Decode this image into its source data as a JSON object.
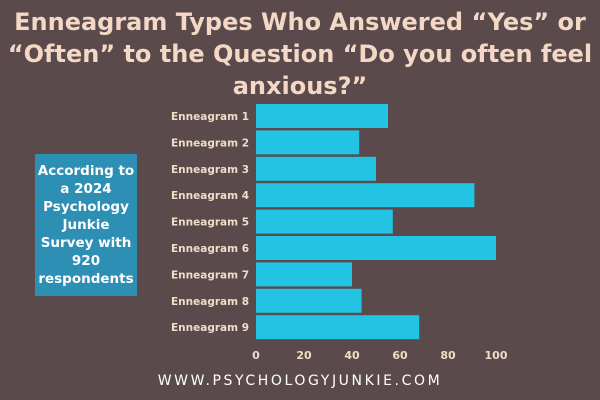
{
  "title_lines": [
    "Enneagram Types Who Answered “Yes” or",
    "“Often” to the Question “Do you often feel",
    "anxious?”"
  ],
  "note_lines": [
    "According to",
    "a 2024",
    "Psychology",
    "Junkie",
    "Survey with",
    "920",
    "respondents"
  ],
  "footer": "WWW.PSYCHOLOGYJUNKIE.COM",
  "colors": {
    "background": "#5a4a4b",
    "bar": "#22c3e3",
    "title": "#f4d7c4",
    "note_box": "#2e8fb5",
    "tick_label": "#f1dcc8"
  },
  "chart_data": {
    "type": "bar",
    "orientation": "horizontal",
    "categories": [
      "Enneagram 1",
      "Enneagram 2",
      "Enneagram 3",
      "Enneagram 4",
      "Enneagram 5",
      "Enneagram 6",
      "Enneagram 7",
      "Enneagram 8",
      "Enneagram 9"
    ],
    "values": [
      55,
      43,
      50,
      91,
      57,
      100,
      40,
      44,
      68
    ],
    "xlim": [
      0,
      100
    ],
    "xticks": [
      0,
      20,
      40,
      60,
      80,
      100
    ],
    "grid": false
  }
}
